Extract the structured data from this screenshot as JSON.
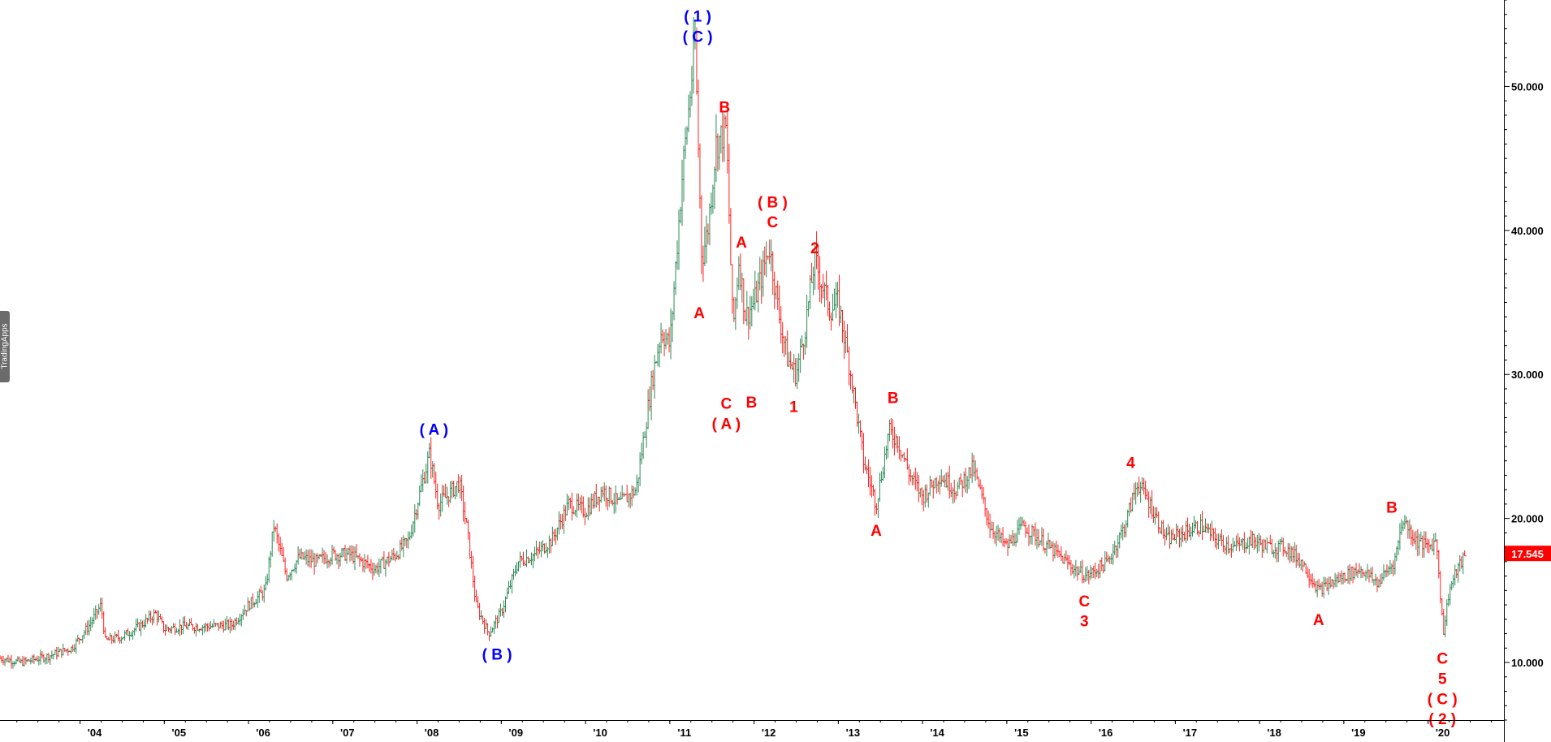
{
  "chart_data": {
    "type": "bar",
    "subtype": "ohlc",
    "title": "",
    "xlabel": "",
    "ylabel": "",
    "ylim": [
      6.0,
      56.0
    ],
    "y_ticks": [
      10,
      20,
      30,
      40,
      50
    ],
    "y_tick_labels": [
      "10.000",
      "20.000",
      "30.000",
      "40.000",
      "50.000"
    ],
    "x_tick_labels": [
      "'04",
      "'05",
      "'06",
      "'07",
      "'08",
      "'09",
      "'10",
      "'11",
      "'12",
      "'13",
      "'14",
      "'15",
      "'16",
      "'17",
      "'18",
      "'19",
      "'20"
    ],
    "x_tick_years": [
      2004,
      2005,
      2006,
      2007,
      2008,
      2009,
      2010,
      2011,
      2012,
      2013,
      2014,
      2015,
      2016,
      2017,
      2018,
      2019,
      2020
    ],
    "xlim_years": [
      2003.05,
      2020.9
    ],
    "grid": false,
    "last_price": "17.545",
    "last_price_value": 17.545,
    "colors": {
      "up": "#2e8b57",
      "down": "#ff2020",
      "wave_primary": "#0000ff",
      "wave_secondary": "#ff0000",
      "price_tag": "#ff0000"
    },
    "series": [
      {
        "x": [
          2003.05,
          2003.3,
          2003.6,
          2003.9,
          2004.1,
          2004.25,
          2004.3,
          2004.5,
          2004.7,
          2004.9,
          2005.0,
          2005.2,
          2005.5,
          2005.8,
          2006.0,
          2006.2,
          2006.3,
          2006.45,
          2006.6,
          2006.8,
          2007.0,
          2007.2,
          2007.5,
          2007.75,
          2007.9,
          2008.0,
          2008.15,
          2008.25,
          2008.35,
          2008.5,
          2008.6,
          2008.7,
          2008.85,
          2009.0,
          2009.2,
          2009.4,
          2009.6,
          2009.8,
          2010.0,
          2010.2,
          2010.4,
          2010.6,
          2010.8,
          2010.9,
          2011.0,
          2011.15,
          2011.3,
          2011.38,
          2011.45,
          2011.55,
          2011.67,
          2011.75,
          2011.82,
          2011.9,
          2012.0,
          2012.1,
          2012.18,
          2012.3,
          2012.4,
          2012.5,
          2012.6,
          2012.72,
          2012.9,
          2013.0,
          2013.15,
          2013.3,
          2013.45,
          2013.6,
          2013.7,
          2013.85,
          2014.0,
          2014.2,
          2014.4,
          2014.6,
          2014.8,
          2015.0,
          2015.2,
          2015.4,
          2015.6,
          2015.8,
          2015.95,
          2016.2,
          2016.4,
          2016.55,
          2016.7,
          2016.9,
          2017.1,
          2017.3,
          2017.5,
          2017.7,
          2017.9,
          2018.1,
          2018.3,
          2018.5,
          2018.7,
          2018.85,
          2019.0,
          2019.2,
          2019.4,
          2019.6,
          2019.7,
          2019.85,
          2020.0,
          2020.1,
          2020.18,
          2020.25,
          2020.35,
          2020.45
        ],
        "y": [
          10.3,
          10.0,
          10.4,
          11.0,
          12.5,
          14.0,
          11.5,
          11.8,
          12.5,
          13.4,
          12.3,
          12.5,
          12.5,
          12.6,
          14.0,
          15.0,
          19.5,
          16.0,
          17.3,
          17.0,
          17.5,
          17.5,
          16.5,
          17.5,
          18.5,
          21.0,
          24.5,
          21.0,
          21.5,
          22.5,
          19.0,
          14.0,
          12.0,
          13.5,
          17.0,
          17.5,
          18.5,
          21.0,
          20.5,
          22.0,
          21.0,
          22.0,
          30.0,
          33.0,
          32.0,
          44.0,
          53.0,
          38.0,
          40.0,
          46.0,
          47.0,
          33.0,
          38.0,
          34.0,
          35.0,
          37.0,
          39.0,
          34.0,
          31.0,
          30.0,
          33.0,
          38.0,
          34.5,
          35.0,
          30.0,
          24.0,
          21.0,
          26.0,
          25.5,
          23.0,
          21.5,
          23.0,
          22.0,
          23.5,
          19.5,
          18.0,
          19.5,
          18.5,
          17.5,
          16.5,
          16.0,
          17.0,
          19.5,
          22.5,
          21.0,
          18.5,
          19.0,
          19.5,
          18.5,
          18.0,
          18.5,
          18.0,
          18.0,
          17.0,
          15.0,
          15.5,
          16.0,
          16.5,
          15.5,
          17.0,
          20.0,
          18.5,
          18.0,
          18.5,
          12.0,
          15.0,
          16.5,
          17.5
        ]
      }
    ],
    "annotations": [
      {
        "text": "( 1 )",
        "x": 2011.33,
        "y": 54.9,
        "color": "blue"
      },
      {
        "text": "( C )",
        "x": 2011.33,
        "y": 53.5,
        "color": "blue"
      },
      {
        "text": "( A )",
        "x": 2008.2,
        "y": 26.2,
        "color": "blue"
      },
      {
        "text": "( B )",
        "x": 2008.95,
        "y": 10.6,
        "color": "blue"
      },
      {
        "text": "A",
        "x": 2011.35,
        "y": 34.3,
        "color": "red"
      },
      {
        "text": "B",
        "x": 2011.65,
        "y": 48.6,
        "color": "red"
      },
      {
        "text": "C",
        "x": 2011.67,
        "y": 28.0,
        "color": "red"
      },
      {
        "text": "( A )",
        "x": 2011.67,
        "y": 26.6,
        "color": "red"
      },
      {
        "text": "A",
        "x": 2011.85,
        "y": 39.2,
        "color": "red"
      },
      {
        "text": "B",
        "x": 2011.97,
        "y": 28.1,
        "color": "red"
      },
      {
        "text": "( B )",
        "x": 2012.22,
        "y": 42.0,
        "color": "red"
      },
      {
        "text": "C",
        "x": 2012.22,
        "y": 40.6,
        "color": "red"
      },
      {
        "text": "1",
        "x": 2012.47,
        "y": 27.8,
        "color": "red"
      },
      {
        "text": "2",
        "x": 2012.72,
        "y": 38.8,
        "color": "red"
      },
      {
        "text": "B",
        "x": 2013.65,
        "y": 28.4,
        "color": "red"
      },
      {
        "text": "A",
        "x": 2013.45,
        "y": 19.2,
        "color": "red"
      },
      {
        "text": "4",
        "x": 2016.47,
        "y": 23.9,
        "color": "red"
      },
      {
        "text": "C",
        "x": 2015.92,
        "y": 14.3,
        "color": "red"
      },
      {
        "text": "3",
        "x": 2015.92,
        "y": 12.9,
        "color": "red"
      },
      {
        "text": "A",
        "x": 2018.7,
        "y": 13.0,
        "color": "red"
      },
      {
        "text": "B",
        "x": 2019.57,
        "y": 20.8,
        "color": "red"
      },
      {
        "text": "C",
        "x": 2020.17,
        "y": 10.3,
        "color": "red"
      },
      {
        "text": "5",
        "x": 2020.17,
        "y": 8.9,
        "color": "red"
      },
      {
        "text": "( C )",
        "x": 2020.17,
        "y": 7.5,
        "color": "red"
      },
      {
        "text": "( 2 )",
        "x": 2020.17,
        "y": 6.1,
        "color": "red"
      }
    ]
  },
  "watermark": "TradingApps"
}
